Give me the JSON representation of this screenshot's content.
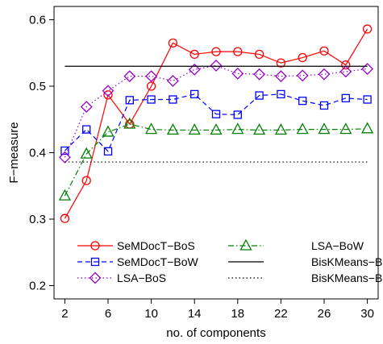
{
  "chart_data": {
    "type": "line",
    "xlabel": "no. of components",
    "ylabel": "F−measure",
    "xlim": [
      1,
      31
    ],
    "ylim": [
      0.18,
      0.62
    ],
    "x_ticks": [
      2,
      6,
      10,
      14,
      18,
      22,
      26,
      30
    ],
    "y_ticks": [
      0.2,
      0.3,
      0.4,
      0.5,
      0.6
    ],
    "y_tick_labels": [
      "0.2",
      "0.3",
      "0.4",
      "0.5",
      "0.6"
    ],
    "legend_position": "bottom",
    "series": [
      {
        "name": "SeMDocT−BoS",
        "color": "#ff0000",
        "line": "solid",
        "marker": "circle",
        "x": [
          2,
          4,
          6,
          8,
          10,
          12,
          14,
          16,
          18,
          20,
          22,
          24,
          26,
          28,
          30
        ],
        "y": [
          0.301,
          0.358,
          0.487,
          0.443,
          0.5,
          0.565,
          0.548,
          0.552,
          0.552,
          0.548,
          0.535,
          0.543,
          0.553,
          0.532,
          0.586
        ]
      },
      {
        "name": "SeMDocT−BoW",
        "color": "#0000ff",
        "line": "dashed",
        "marker": "square",
        "x": [
          2,
          4,
          6,
          8,
          10,
          12,
          14,
          16,
          18,
          20,
          22,
          24,
          26,
          28,
          30
        ],
        "y": [
          0.403,
          0.435,
          0.402,
          0.479,
          0.48,
          0.48,
          0.488,
          0.458,
          0.457,
          0.486,
          0.488,
          0.478,
          0.471,
          0.482,
          0.48
        ]
      },
      {
        "name": "LSA−BoS",
        "color": "#9900cc",
        "line": "dotted",
        "marker": "diamond",
        "x": [
          2,
          4,
          6,
          8,
          10,
          12,
          14,
          16,
          18,
          20,
          22,
          24,
          26,
          28,
          30
        ],
        "y": [
          0.393,
          0.469,
          0.493,
          0.515,
          0.515,
          0.508,
          0.525,
          0.531,
          0.519,
          0.518,
          0.515,
          0.516,
          0.518,
          0.522,
          0.526
        ]
      },
      {
        "name": "LSA−BoW",
        "color": "#008000",
        "line": "dashdot",
        "marker": "triangle",
        "x": [
          2,
          4,
          6,
          8,
          10,
          12,
          14,
          16,
          18,
          20,
          22,
          24,
          26,
          28,
          30
        ],
        "y": [
          0.335,
          0.398,
          0.431,
          0.443,
          0.435,
          0.434,
          0.434,
          0.434,
          0.435,
          0.434,
          0.434,
          0.435,
          0.435,
          0.435,
          0.436
        ]
      },
      {
        "name": "BisKMeans−BoS",
        "color": "#000000",
        "line": "solid",
        "marker": "none",
        "x": [
          2,
          30
        ],
        "y": [
          0.53,
          0.53
        ]
      },
      {
        "name": "BisKMeans−BoW",
        "color": "#000000",
        "line": "dotted",
        "marker": "none",
        "x": [
          2,
          30
        ],
        "y": [
          0.386,
          0.386
        ]
      }
    ]
  }
}
